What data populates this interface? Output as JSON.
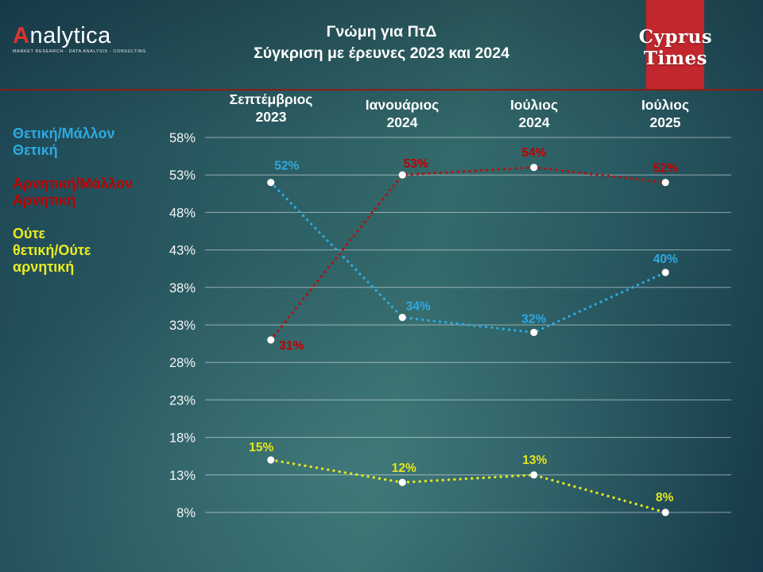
{
  "header": {
    "logo": {
      "brand_first_letter": "A",
      "brand_rest": "nalytica",
      "tagline": "MARKET RESEARCH - DATA ANALYSIS - CONSULTING"
    },
    "title": "Γνώμη για ΠτΔ\nΣύγκριση με έρευνες 2023 και 2024",
    "partner_logo": "Cyprus Times"
  },
  "legend": {
    "items": [
      {
        "label": "Θετική/Μάλλον\nΘετική",
        "color": "#2fa9e1"
      },
      {
        "label": "Αρνητική/Μάλλον\nΑρνητική",
        "color": "#c00000"
      },
      {
        "label": "Ούτε\nθετική/Ούτε\nαρνητική",
        "color": "#e8ec23"
      }
    ]
  },
  "column_headers": [
    "Σεπτέμβριος\n2023",
    "Ιανουάριος\n2024",
    "Ιούλιος\n2024",
    "Ιούλιος\n2025"
  ],
  "chart_data": {
    "type": "line",
    "title": "Γνώμη για ΠτΔ - Σύγκριση με έρευνες 2023 και 2024",
    "categories": [
      "Σεπτέμβριος 2023",
      "Ιανουάριος 2024",
      "Ιούλιος 2024",
      "Ιούλιος 2025"
    ],
    "series": [
      {
        "name": "Θετική/Μάλλον Θετική",
        "color": "#2fa9e1",
        "values": [
          52,
          34,
          32,
          40
        ],
        "labels": [
          "52%",
          "34%",
          "32%",
          "40%"
        ],
        "label_offsets": [
          [
            20,
            -16
          ],
          [
            20,
            -9
          ],
          [
            0,
            -12
          ],
          [
            0,
            -12
          ]
        ]
      },
      {
        "name": "Αρνητική/Μάλλον Αρνητική",
        "color": "#b01311",
        "label_color": "#c00000",
        "values": [
          31,
          53,
          54,
          52
        ],
        "labels": [
          "31%",
          "53%",
          "54%",
          "52%"
        ],
        "label_offsets": [
          [
            26,
            12
          ],
          [
            17,
            -9
          ],
          [
            0,
            -14
          ],
          [
            0,
            -13
          ]
        ]
      },
      {
        "name": "Ούτε θετική/Ούτε αρνητική",
        "color": "#e3e61c",
        "values": [
          15,
          12,
          13,
          8
        ],
        "labels": [
          "15%",
          "12%",
          "13%",
          "8%"
        ],
        "label_offsets": [
          [
            -12,
            -11
          ],
          [
            2,
            -13
          ],
          [
            1,
            -14
          ],
          [
            -1,
            -14
          ]
        ]
      }
    ],
    "y_ticks": [
      "58%",
      "53%",
      "48%",
      "43%",
      "38%",
      "33%",
      "28%",
      "23%",
      "18%",
      "13%",
      "8%"
    ],
    "ylim": [
      8,
      58
    ],
    "grid": true,
    "legend_position": "left",
    "line_style": "dotted",
    "marker_color": "#ffffff"
  }
}
